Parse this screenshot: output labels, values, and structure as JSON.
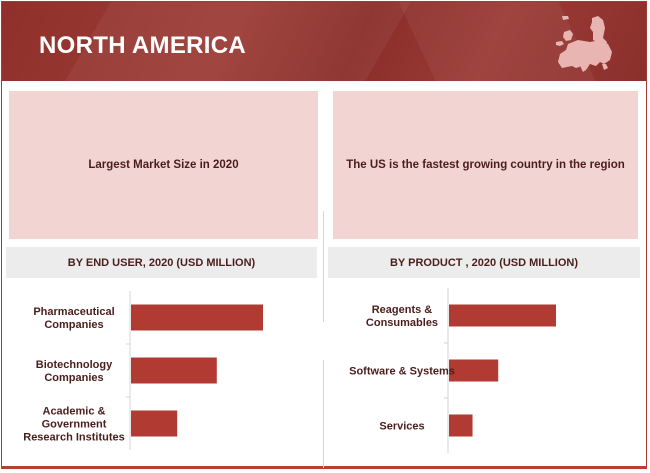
{
  "header": {
    "title": "NORTH AMERICA",
    "map_icon": "europe-map-icon"
  },
  "highlights": {
    "left": "Largest Market Size in 2020",
    "right": "The US is the fastest growing country in the region"
  },
  "colors": {
    "brand": "#962f2b",
    "bar": "#b13a33",
    "highlight_bg": "#f2d4d3",
    "section_bg": "#ececec",
    "text_dark": "#4a1e1c"
  },
  "chart_data": [
    {
      "type": "bar",
      "orientation": "horizontal",
      "title": "BY END USER, 2020 (USD MILLION)",
      "categories": [
        [
          "Pharmaceutical",
          "Companies"
        ],
        [
          "Biotechnology",
          "Companies"
        ],
        [
          "Academic &",
          "Government",
          "Research Institutes"
        ]
      ],
      "category_names": [
        "Pharmaceutical Companies",
        "Biotechnology Companies",
        "Academic & Government Research Institutes"
      ],
      "values": [
        100,
        65,
        35
      ],
      "value_note": "relative bar lengths (no values printed)",
      "xlim": [
        0,
        100
      ],
      "grid": false
    },
    {
      "type": "bar",
      "orientation": "horizontal",
      "title": "BY PRODUCT , 2020 (USD MILLION)",
      "categories": [
        [
          "Reagents &",
          "Consumables"
        ],
        [
          "Software & Systems"
        ],
        [
          "Services"
        ]
      ],
      "category_names": [
        "Reagents & Consumables",
        "Software & Systems",
        "Services"
      ],
      "values": [
        100,
        46,
        22
      ],
      "value_note": "relative bar lengths (no values printed)",
      "xlim": [
        0,
        100
      ],
      "grid": false
    }
  ]
}
